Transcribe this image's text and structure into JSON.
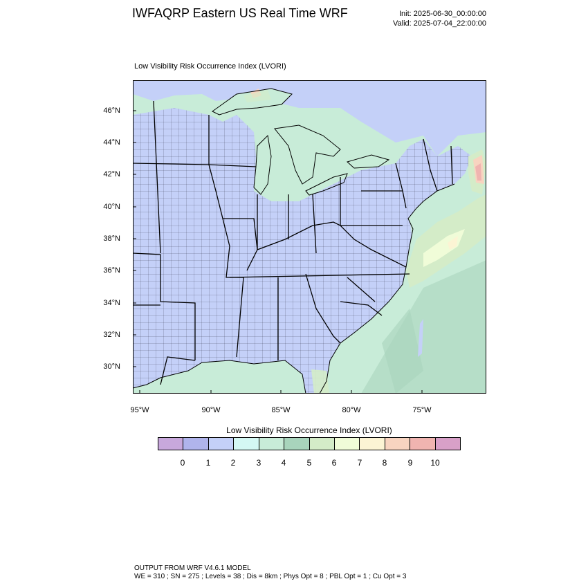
{
  "header": {
    "title": "IWFAQRP Eastern US Real Time WRF",
    "init": "Init: 2025-06-30_00:00:00",
    "valid": "Valid: 2025-07-04_22:00:00"
  },
  "map": {
    "field_title": "Low Visibility Risk Occurrence Index   (LVORI)",
    "lat_labels": [
      "46°N",
      "44°N",
      "42°N",
      "40°N",
      "38°N",
      "36°N",
      "34°N",
      "32°N",
      "30°N"
    ],
    "lon_labels": [
      "95°W",
      "90°W",
      "85°W",
      "80°W",
      "75°W"
    ],
    "colors": {
      "land_low": "#c4d0f8",
      "water_mid": "#c8ecd8",
      "high": "#f4b8b0"
    }
  },
  "colorbar": {
    "title": "Low Visibility Risk Occurrence Index  (LVORI)",
    "labels": [
      "0",
      "1",
      "2",
      "3",
      "4",
      "5",
      "6",
      "7",
      "8",
      "9",
      "10"
    ],
    "colors": [
      "#c8a8dc",
      "#b0b4ec",
      "#c4d0f8",
      "#d4f8f4",
      "#c8ecd8",
      "#a8d4bc",
      "#d4ecc8",
      "#f0fcd8",
      "#fcf4d4",
      "#f8d4c0",
      "#f0b4b0",
      "#d8a0c8"
    ]
  },
  "footer": {
    "line1": "OUTPUT FROM WRF V4.6.1 MODEL",
    "line2": "WE = 310 ; SN = 275 ; Levels = 38 ; Dis = 8km ; Phys Opt = 8 ; PBL Opt = 1 ; Cu Opt = 3"
  }
}
